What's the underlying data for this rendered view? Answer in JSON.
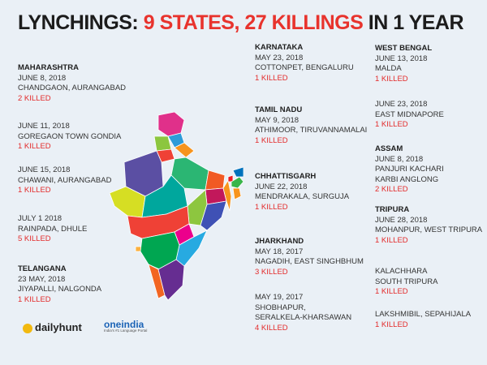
{
  "title": {
    "prefix": "LYNCHINGS: ",
    "highlight": "9 STATES, 27 KILLINGS",
    "suffix": " IN 1 YEAR"
  },
  "col1": [
    {
      "state": "MAHARASHTRA",
      "lines": [
        "JUNE 8, 2018",
        "CHANDGAON, AURANGABAD"
      ],
      "killed": "2 KILLED"
    },
    {
      "state": "",
      "lines": [
        "JUNE 11, 2018",
        "GOREGAON TOWN GONDIA"
      ],
      "killed": "1 KILLED"
    },
    {
      "state": "",
      "lines": [
        "JUNE 15, 2018",
        "CHAWANI, AURANGABAD"
      ],
      "killed": "1 KILLED"
    },
    {
      "state": "",
      "lines": [
        "JULY 1 2018",
        "RAINPADA, DHULE"
      ],
      "killed": "5 KILLED"
    },
    {
      "state": "TELANGANA",
      "lines": [
        "23 MAY, 2018",
        "JIYAPALLI, NALGONDA"
      ],
      "killed": "1 KILLED"
    }
  ],
  "col2": [
    {
      "state": "KARNATAKA",
      "lines": [
        "MAY 23, 2018",
        "COTTONPET, BENGALURU"
      ],
      "killed": "1 KILLED"
    },
    {
      "state": "TAMIL NADU",
      "lines": [
        "MAY 9, 2018",
        "ATHIMOOR, TIRUVANNAMALAI"
      ],
      "killed": "1 KILLED"
    },
    {
      "state": "CHHATTISGARH",
      "lines": [
        "JUNE 22, 2018",
        "MENDRAKALA, SURGUJA"
      ],
      "killed": "1 KILLED"
    },
    {
      "state": "JHARKHAND",
      "lines": [
        "MAY 18, 2017",
        "NAGADIH, EAST SINGHBHUM"
      ],
      "killed": "3 KILLED"
    },
    {
      "state": "",
      "lines": [
        "MAY 19, 2017",
        "SHOBHAPUR,",
        "SERALKELA-KHARSAWAN"
      ],
      "killed": "4 KILLED"
    }
  ],
  "col3": [
    {
      "state": "WEST BENGAL",
      "lines": [
        "JUNE 13, 2018",
        "MALDA"
      ],
      "killed": "1 KILLED"
    },
    {
      "state": "",
      "lines": [
        "JUNE 23, 2018",
        "EAST MIDNAPORE"
      ],
      "killed": "1 KILLED"
    },
    {
      "state": "ASSAM",
      "lines": [
        "JUNE 8, 2018",
        "PANJURI KACHARI",
        "KARBI ANGLONG"
      ],
      "killed": "2 KILLED"
    },
    {
      "state": "TRIPURA",
      "lines": [
        "JUNE 28, 2018",
        "MOHANPUR, WEST TRIPURA"
      ],
      "killed": "1 KILLED"
    },
    {
      "state": "",
      "lines": [
        "KALACHHARA",
        "SOUTH TRIPURA"
      ],
      "killed": "1 KILLED"
    },
    {
      "state": "",
      "lines": [
        "LAKSHMIBIL, SEPAHIJALA"
      ],
      "killed": "1 KILLED"
    }
  ],
  "logos": {
    "dailyhunt": "dailyhunt",
    "oneindia": "oneindia",
    "oneindia_tag": "India's #1 Language Portal"
  },
  "colors": {
    "red": "#e32b2b",
    "title": "#1c1c1c",
    "background": "#eaf0f6"
  }
}
